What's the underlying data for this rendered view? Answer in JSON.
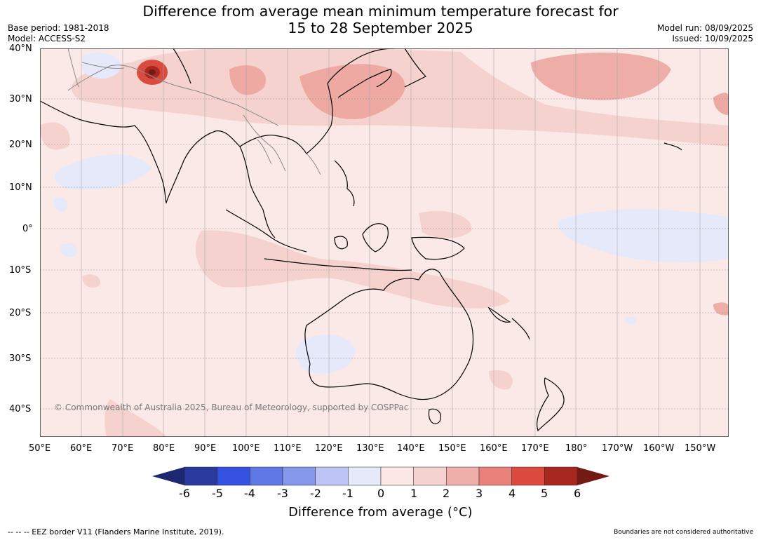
{
  "title_line1": "Difference from average mean minimum temperature forecast for",
  "title_line2": "15 to 28 September 2025",
  "base_period": "Base period: 1981-2018",
  "model": "Model: ACCESS-S2",
  "model_run": "Model run: 08/09/2025",
  "issued": "Issued: 10/09/2025",
  "copyright": "© Commonwealth of Australia 2025, Bureau of Meteorology, supported by COSPPac",
  "lat_labels": [
    "40°N",
    "30°N",
    "20°N",
    "10°N",
    "0°",
    "10°S",
    "20°S",
    "30°S",
    "40°S"
  ],
  "lon_labels": [
    "50°E",
    "60°E",
    "70°E",
    "80°E",
    "90°E",
    "100°E",
    "110°E",
    "120°E",
    "130°E",
    "140°E",
    "150°E",
    "160°E",
    "170°E",
    "180°",
    "170°W",
    "160°W",
    "150°W"
  ],
  "colorbar": {
    "ticks": [
      "-6",
      "-5",
      "-4",
      "-3",
      "-2",
      "-1",
      "0",
      "1",
      "2",
      "3",
      "4",
      "5",
      "6"
    ],
    "colors": [
      "#2a3a9f",
      "#3551e0",
      "#5f78e6",
      "#8597ea",
      "#bcc4f3",
      "#e6e9fa",
      "#fbe8e6",
      "#f4d2cf",
      "#eeaeaa",
      "#e8817a",
      "#da4a3f",
      "#a8281f"
    ],
    "low_extend_color": "#1d2873",
    "high_extend_color": "#741a14",
    "label": "Difference from average (°C)"
  },
  "footer_left": "--  --  -- EEZ border V11 (Flanders Marine Institute, 2019).",
  "footer_right": "Boundaries are not considered authoritative"
}
